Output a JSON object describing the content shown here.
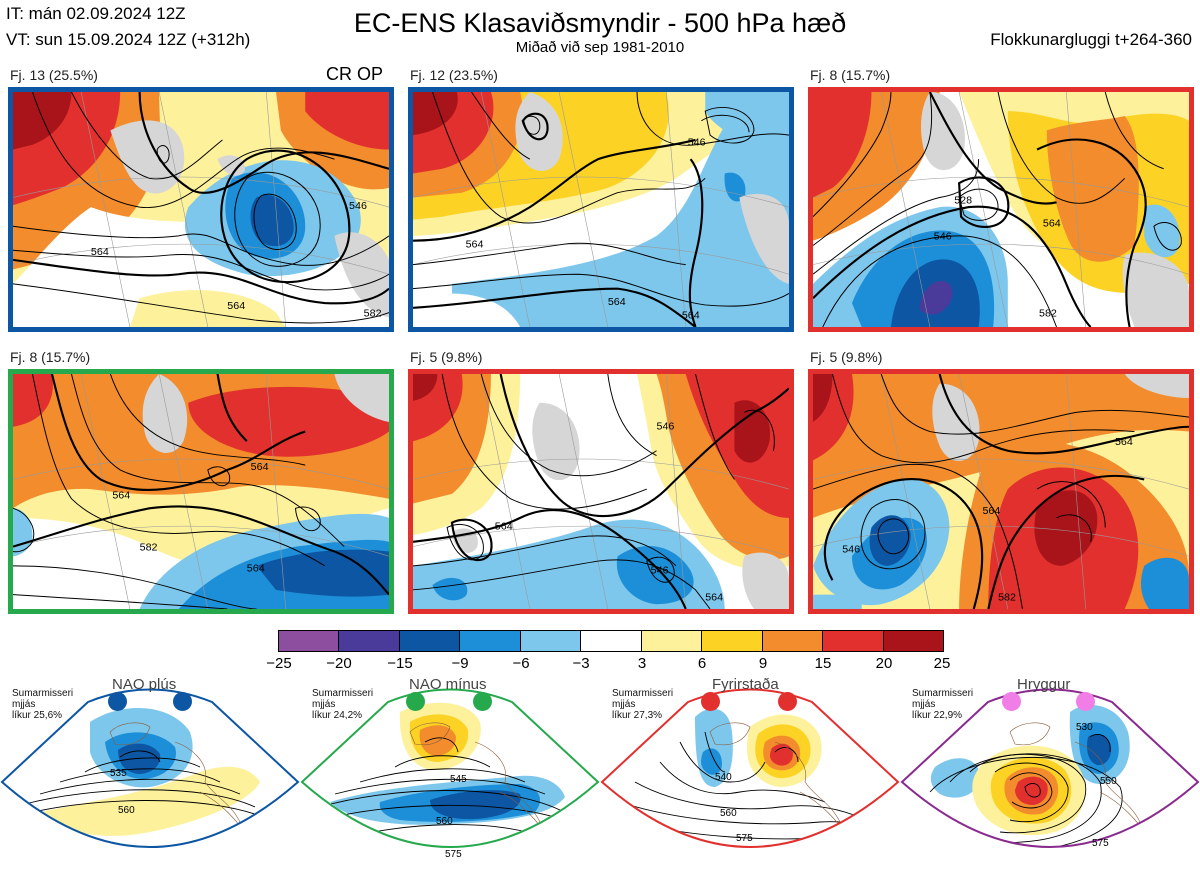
{
  "header": {
    "init": "IT: mán 02.09.2024 12Z",
    "valid": "VT: sun 15.09.2024 12Z  (+312h)",
    "title": "EC-ENS Klasaviðsmyndir - 500 hPa hæð",
    "subtitle": "Miðað við sep 1981-2010",
    "window": "Flokkunargluggi t+264-360"
  },
  "panels": [
    {
      "label": "Fj. 13 (25.5%)",
      "tag": "CR OP",
      "frame": "#0d56a4",
      "contours": [
        "546",
        "564",
        "564",
        "582"
      ]
    },
    {
      "label": "Fj. 12 (23.5%)",
      "tag": "",
      "frame": "#0d56a4",
      "contours": [
        "546",
        "564",
        "564",
        "564"
      ]
    },
    {
      "label": "Fj. 8 (15.7%)",
      "tag": "",
      "frame": "#e2302e",
      "contours": [
        "528",
        "546",
        "564",
        "582"
      ]
    },
    {
      "label": "Fj. 8 (15.7%)",
      "tag": "",
      "frame": "#26a94d",
      "contours": [
        "564",
        "564",
        "582",
        "564"
      ]
    },
    {
      "label": "Fj. 5 (9.8%)",
      "tag": "",
      "frame": "#e2302e",
      "contours": [
        "546",
        "564",
        "546",
        "564"
      ]
    },
    {
      "label": "Fj. 5 (9.8%)",
      "tag": "",
      "frame": "#e2302e",
      "contours": [
        "546",
        "564",
        "564",
        "582"
      ]
    }
  ],
  "colorbar": {
    "colors": [
      "#8e4e9f",
      "#4a3a9a",
      "#0d56a4",
      "#1d8fd8",
      "#7dc7ec",
      "#ffffff",
      "#fdf19b",
      "#fcd325",
      "#f28c2c",
      "#e2302e",
      "#a8141a"
    ],
    "ticks": [
      "−25",
      "−20",
      "−15",
      "−9",
      "−6",
      "−3",
      "3",
      "6",
      "9",
      "15",
      "20",
      "25"
    ]
  },
  "regimes": [
    {
      "name": "NAO plús",
      "season": "Sumarmisseri",
      "kind": "mjjás",
      "prob": "líkur 25,6%",
      "color": "#0d56a4",
      "contours": [
        "535",
        "560"
      ]
    },
    {
      "name": "NAO mínus",
      "season": "Sumarmisseri",
      "kind": "mjjás",
      "prob": "líkur 24,2%",
      "color": "#26a94d",
      "contours": [
        "545",
        "560",
        "575"
      ]
    },
    {
      "name": "Fyrirstaða",
      "season": "Sumarmisseri",
      "kind": "mjjás",
      "prob": "líkur 27,3%",
      "color": "#e2302e",
      "contours": [
        "540",
        "560",
        "575"
      ]
    },
    {
      "name": "Hryggur",
      "season": "Sumarmisseri",
      "kind": "mjjás",
      "prob": "líkur 22,9%",
      "color": "#8a2a8f",
      "dotcolor": "#f07ee6",
      "contours": [
        "530",
        "550",
        "575"
      ]
    }
  ]
}
